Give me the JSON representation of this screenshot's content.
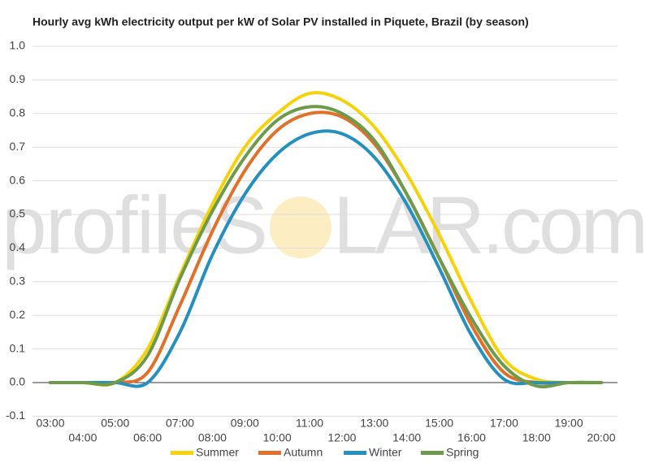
{
  "chart_data": {
    "type": "line",
    "title": "Hourly avg kWh electricity output per kW of Solar PV installed in Piquete, Brazil (by season)",
    "watermark": [
      "profileS",
      "LAR.com"
    ],
    "categories": [
      "03:00",
      "04:00",
      "05:00",
      "06:00",
      "07:00",
      "08:00",
      "09:00",
      "10:00",
      "11:00",
      "12:00",
      "13:00",
      "14:00",
      "15:00",
      "16:00",
      "17:00",
      "18:00",
      "19:00",
      "20:00"
    ],
    "series": [
      {
        "name": "Summer",
        "color": "#f5d20a",
        "values": [
          0,
          0,
          0,
          0.1,
          0.32,
          0.53,
          0.7,
          0.8,
          0.86,
          0.84,
          0.76,
          0.62,
          0.44,
          0.24,
          0.07,
          0.01,
          0,
          0
        ]
      },
      {
        "name": "Autumn",
        "color": "#e0702a",
        "values": [
          0,
          0,
          0,
          0.03,
          0.23,
          0.45,
          0.63,
          0.75,
          0.8,
          0.79,
          0.71,
          0.56,
          0.37,
          0.17,
          0.03,
          0,
          0,
          0
        ]
      },
      {
        "name": "Winter",
        "color": "#2590c0",
        "values": [
          0,
          0,
          0,
          0,
          0.15,
          0.38,
          0.56,
          0.68,
          0.74,
          0.74,
          0.67,
          0.53,
          0.34,
          0.14,
          0.01,
          0,
          0,
          0
        ]
      },
      {
        "name": "Spring",
        "color": "#6e9a4c",
        "values": [
          0,
          0,
          0,
          0.08,
          0.31,
          0.51,
          0.67,
          0.78,
          0.82,
          0.8,
          0.72,
          0.56,
          0.37,
          0.19,
          0.05,
          -0.01,
          0,
          0
        ]
      }
    ],
    "ylim": [
      -0.1,
      1.0
    ],
    "yticks": [
      -0.1,
      {
        "value": 0,
        "label": "0.0"
      },
      0.1,
      0.2,
      0.3,
      0.4,
      0.5,
      0.6,
      0.7,
      0.8,
      0.9,
      {
        "value": 1,
        "label": "1.0"
      }
    ],
    "grid": true
  }
}
